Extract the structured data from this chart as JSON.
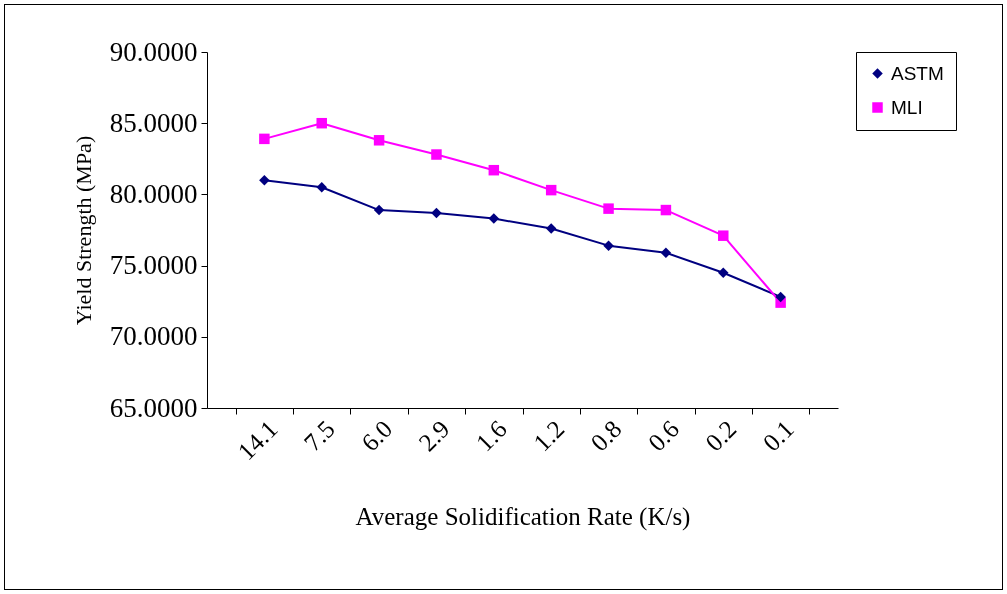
{
  "chart_data": {
    "type": "line",
    "xlabel": "Average Solidification Rate (K/s)",
    "ylabel": "Yield Strength (MPa)",
    "categories": [
      "14.1",
      "7.5",
      "6.0",
      "2.9",
      "1.6",
      "1.2",
      "0.8",
      "0.6",
      "0.2",
      "0.1"
    ],
    "ylim": [
      65,
      90
    ],
    "yticks": [
      {
        "value": 65,
        "label": "65.0000"
      },
      {
        "value": 70,
        "label": "70.0000"
      },
      {
        "value": 75,
        "label": "75.0000"
      },
      {
        "value": 80,
        "label": "80.0000"
      },
      {
        "value": 85,
        "label": "85.0000"
      },
      {
        "value": 90,
        "label": "90.0000"
      }
    ],
    "grid": false,
    "legend": "right",
    "line_style": "solid",
    "series": [
      {
        "name": "ASTM",
        "color": "#000080",
        "marker": "diamond",
        "values": [
          81.0,
          80.5,
          78.9,
          78.7,
          78.3,
          77.6,
          76.4,
          75.9,
          74.5,
          72.8
        ]
      },
      {
        "name": "MLI",
        "color": "#ff00ff",
        "marker": "square",
        "values": [
          83.9,
          85.0,
          83.8,
          82.8,
          81.7,
          80.3,
          79.0,
          78.9,
          77.1,
          72.4
        ]
      }
    ]
  }
}
